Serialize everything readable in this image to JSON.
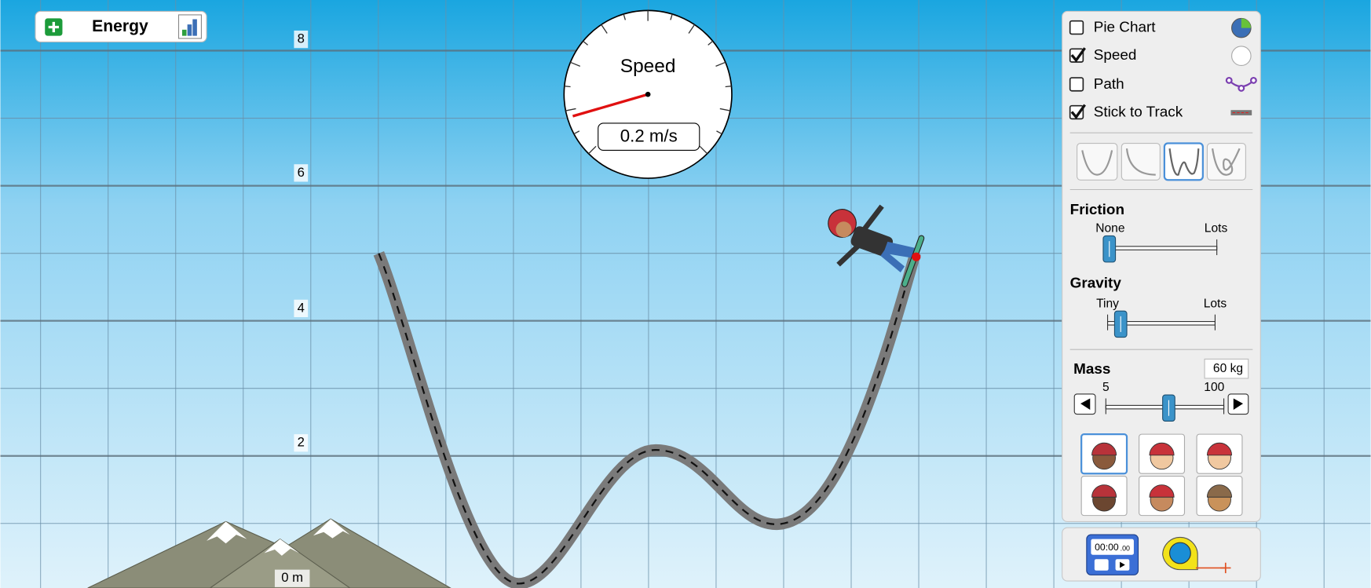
{
  "energy_panel": {
    "title": "Energy"
  },
  "grid_labels": [
    "8",
    "6",
    "4",
    "2",
    "0 m"
  ],
  "speedometer": {
    "title": "Speed",
    "readout": "0.2 m/s"
  },
  "controls": {
    "checkboxes": [
      {
        "label": "Pie Chart",
        "checked": false
      },
      {
        "label": "Speed",
        "checked": true
      },
      {
        "label": "Path",
        "checked": false
      },
      {
        "label": "Stick to Track",
        "checked": true
      }
    ],
    "friction": {
      "title": "Friction",
      "min_label": "None",
      "max_label": "Lots"
    },
    "gravity": {
      "title": "Gravity",
      "min_label": "Tiny",
      "max_label": "Lots"
    },
    "mass": {
      "title": "Mass",
      "readout": "60 kg",
      "min_label": "5",
      "max_label": "100"
    }
  },
  "stopwatch": {
    "time": "00:00",
    "hundredths": ".00"
  }
}
